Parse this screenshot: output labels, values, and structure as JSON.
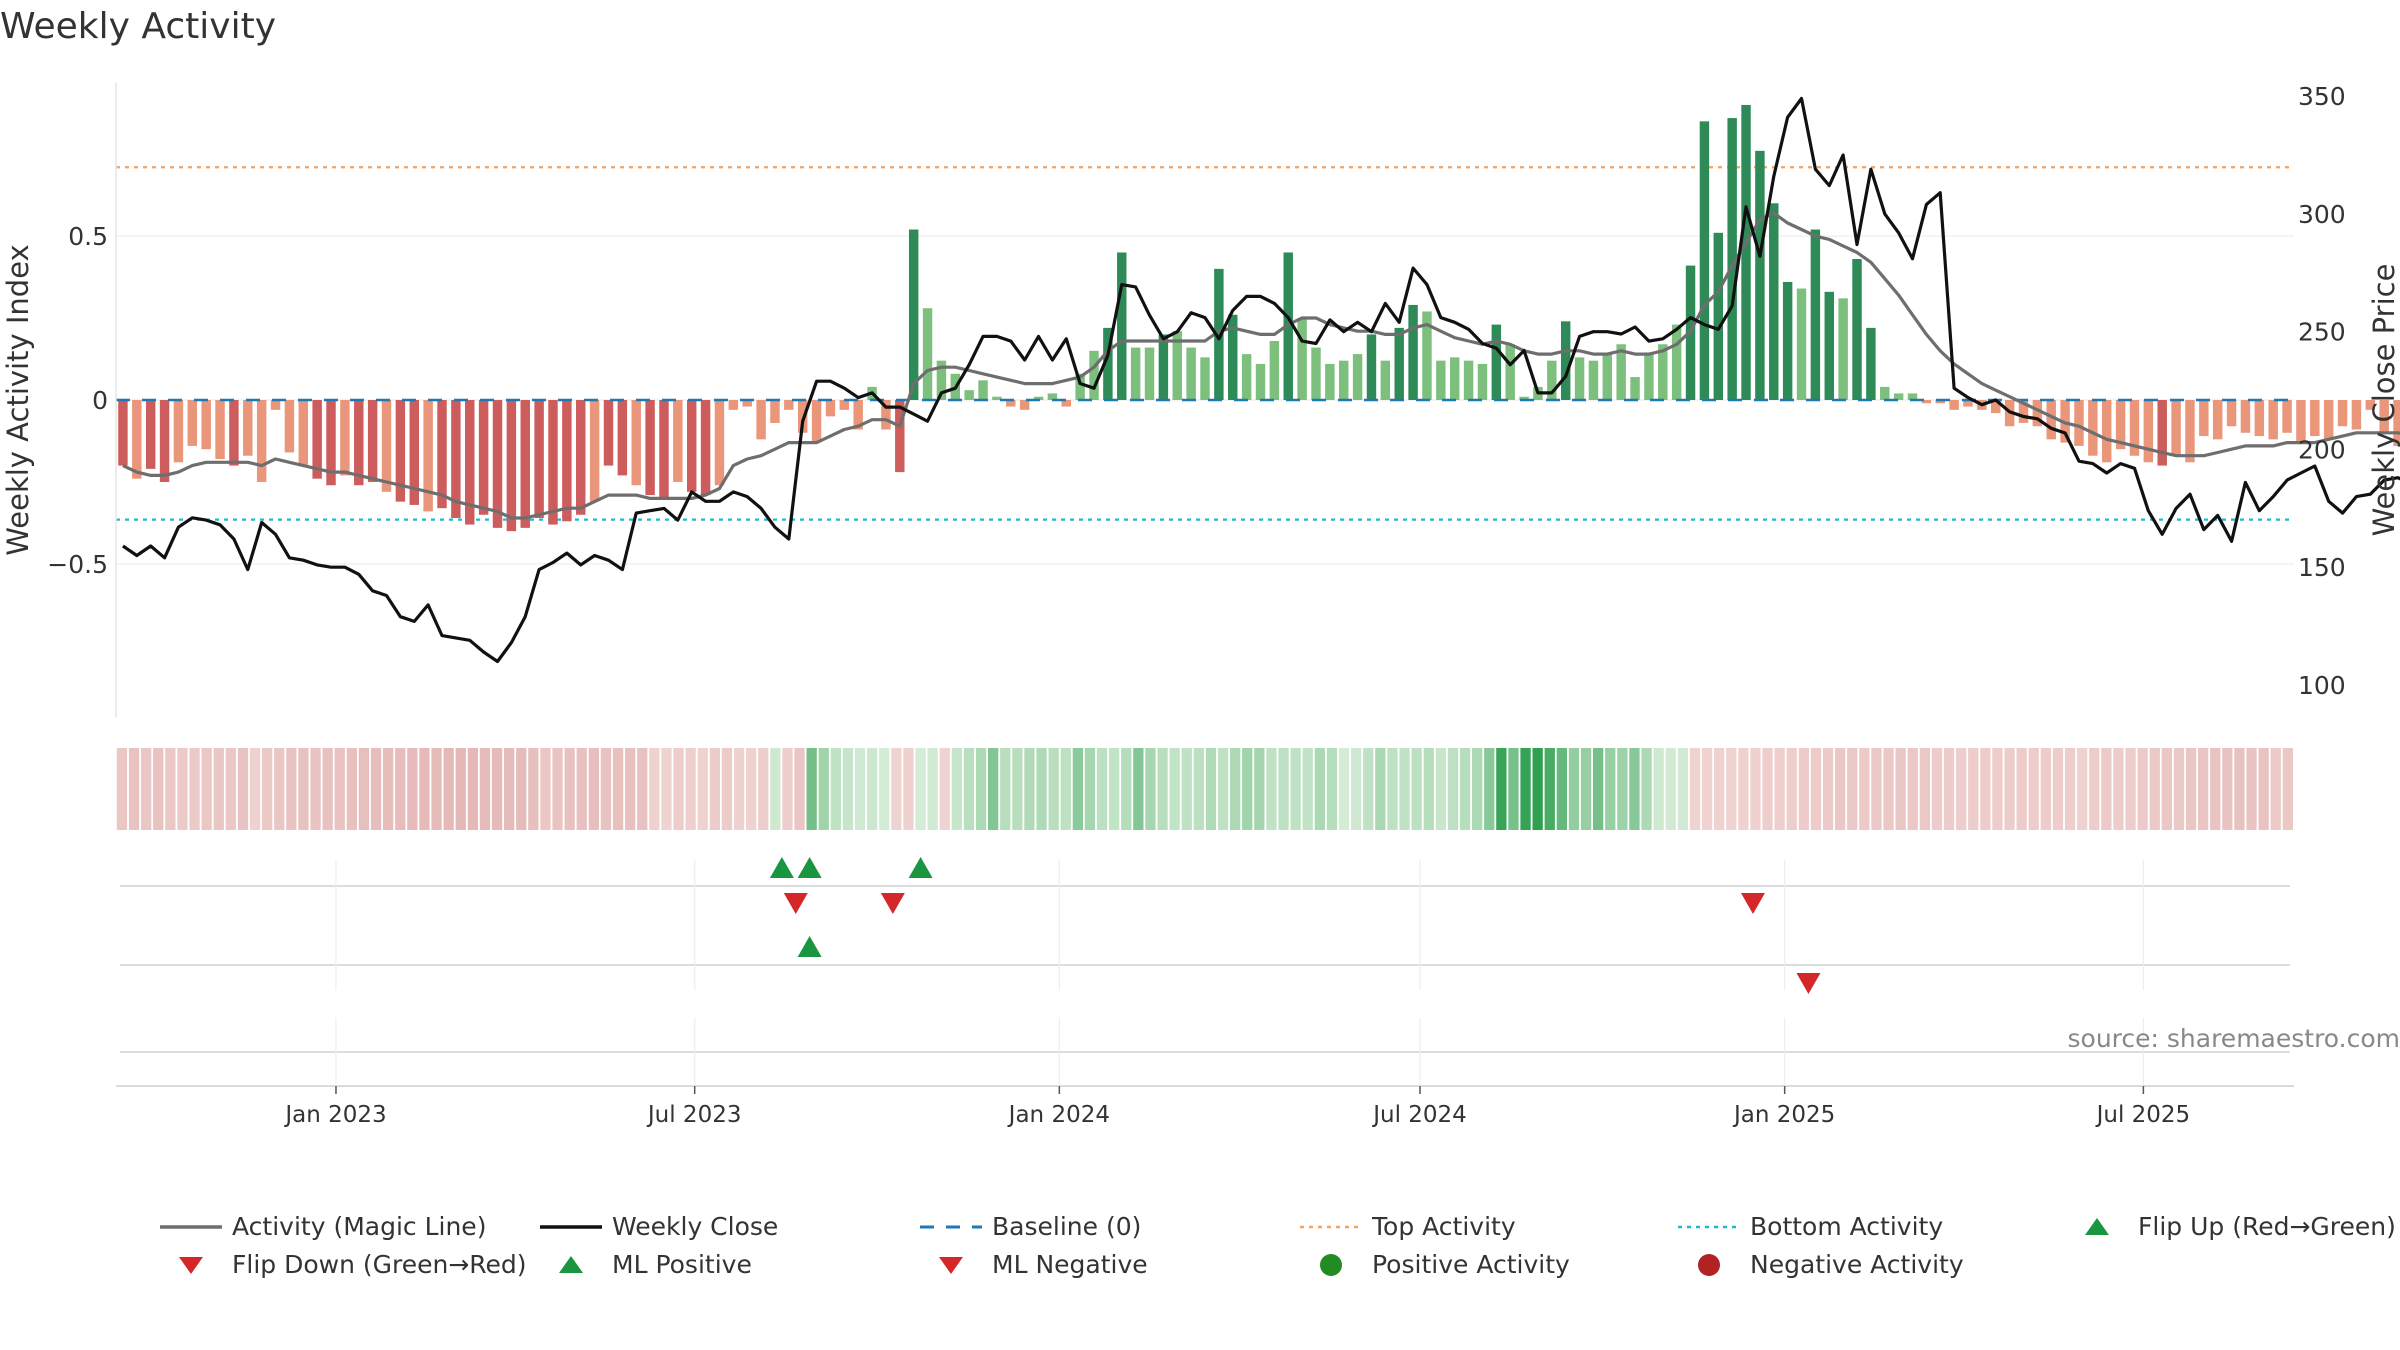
{
  "title": "Weekly Activity",
  "source": "source: sharemaestro.com",
  "colors": {
    "strong_green": "#2e8b57",
    "light_green": "#7dbf7d",
    "strong_red": "#cd5c5c",
    "light_red": "#e9967a",
    "magic_line": "#6e6e6e",
    "close_line": "#111111",
    "baseline": "#1f77b4",
    "top_line": "#f4a460",
    "bottom_line": "#17becf",
    "flip_up": "#1a9641",
    "flip_down": "#d62728"
  },
  "chart_data": {
    "type": "bar",
    "x_ticks": [
      "Jan 2023",
      "Jul 2023",
      "Jan 2024",
      "Jul 2024",
      "Jan 2025",
      "Jul 2025"
    ],
    "x_tick_dates": [
      "2023-01-01",
      "2023-07-01",
      "2024-01-01",
      "2024-07-01",
      "2025-01-01",
      "2025-07-01"
    ],
    "x_range": [
      "2022-09-12",
      "2025-09-15"
    ],
    "left_axis": {
      "label": "Weekly Activity Index",
      "ticks": [
        0.5,
        0,
        -0.5
      ],
      "tick_labels": [
        "0.5",
        "0",
        "−0.5"
      ],
      "ylim": [
        -0.97,
        0.97
      ]
    },
    "right_axis": {
      "label": "Weekly Close Price",
      "ticks": [
        100,
        150,
        200,
        250,
        300,
        350
      ],
      "tick_labels": [
        "100",
        "150",
        "200",
        "250",
        "300",
        "350"
      ],
      "ylim": [
        86,
        356
      ]
    },
    "reference_lines": {
      "baseline": 0,
      "top_activity": 0.71,
      "bottom_activity": -0.365
    },
    "weekly": {
      "start_date": "2022-09-12",
      "activity": [
        -0.2,
        -0.24,
        -0.21,
        -0.25,
        -0.19,
        -0.14,
        -0.15,
        -0.18,
        -0.2,
        -0.17,
        -0.25,
        -0.03,
        -0.16,
        -0.2,
        -0.24,
        -0.26,
        -0.23,
        -0.26,
        -0.25,
        -0.28,
        -0.31,
        -0.32,
        -0.34,
        -0.33,
        -0.36,
        -0.38,
        -0.35,
        -0.39,
        -0.4,
        -0.39,
        -0.36,
        -0.38,
        -0.37,
        -0.35,
        -0.31,
        -0.2,
        -0.23,
        -0.26,
        -0.29,
        -0.3,
        -0.25,
        -0.28,
        -0.29,
        -0.26,
        -0.03,
        -0.02,
        -0.12,
        -0.07,
        -0.03,
        -0.1,
        -0.13,
        -0.05,
        -0.03,
        -0.09,
        0.04,
        -0.09,
        -0.22,
        0.52,
        0.28,
        0.12,
        0.08,
        0.03,
        0.06,
        0.01,
        -0.02,
        -0.03,
        0.01,
        0.02,
        -0.02,
        0.08,
        0.15,
        0.22,
        0.45,
        0.16,
        0.16,
        0.2,
        0.21,
        0.16,
        0.13,
        0.4,
        0.26,
        0.14,
        0.11,
        0.18,
        0.45,
        0.25,
        0.16,
        0.11,
        0.12,
        0.14,
        0.2,
        0.12,
        0.22,
        0.29,
        0.27,
        0.12,
        0.13,
        0.12,
        0.11,
        0.23,
        0.17,
        0.01,
        0.04,
        0.12,
        0.24,
        0.13,
        0.12,
        0.14,
        0.17,
        0.07,
        0.14,
        0.17,
        0.23,
        0.41,
        0.85,
        0.51,
        0.86,
        0.9,
        0.76,
        0.6,
        0.36,
        0.34,
        0.52,
        0.33,
        0.31,
        0.43,
        0.22,
        0.04,
        0.02,
        0.02,
        -0.01,
        -0.01,
        -0.03,
        -0.02,
        -0.03,
        -0.04,
        -0.08,
        -0.07,
        -0.08,
        -0.12,
        -0.13,
        -0.14,
        -0.17,
        -0.19,
        -0.15,
        -0.17,
        -0.19,
        -0.2,
        -0.17,
        -0.19,
        -0.11,
        -0.12,
        -0.08,
        -0.1,
        -0.11,
        -0.12,
        -0.1,
        -0.13,
        -0.11,
        -0.12,
        -0.08,
        -0.09,
        -0.03,
        -0.1,
        -0.14,
        -0.1,
        -0.12,
        -0.14,
        -0.16,
        -0.19,
        -0.16,
        -0.2,
        -0.22,
        -0.24,
        -0.24,
        -0.26,
        -0.23,
        -0.25,
        -0.15,
        -0.19
      ],
      "magic_line": [
        -0.2,
        -0.22,
        -0.23,
        -0.23,
        -0.22,
        -0.2,
        -0.19,
        -0.19,
        -0.19,
        -0.19,
        -0.2,
        -0.18,
        -0.19,
        -0.2,
        -0.21,
        -0.22,
        -0.22,
        -0.23,
        -0.24,
        -0.25,
        -0.26,
        -0.27,
        -0.28,
        -0.29,
        -0.31,
        -0.32,
        -0.33,
        -0.34,
        -0.36,
        -0.36,
        -0.35,
        -0.34,
        -0.33,
        -0.33,
        -0.31,
        -0.29,
        -0.29,
        -0.29,
        -0.3,
        -0.3,
        -0.3,
        -0.3,
        -0.29,
        -0.27,
        -0.2,
        -0.18,
        -0.17,
        -0.15,
        -0.13,
        -0.13,
        -0.13,
        -0.11,
        -0.09,
        -0.08,
        -0.06,
        -0.06,
        -0.08,
        0.05,
        0.09,
        0.1,
        0.1,
        0.09,
        0.08,
        0.07,
        0.06,
        0.05,
        0.05,
        0.05,
        0.06,
        0.07,
        0.1,
        0.15,
        0.18,
        0.18,
        0.18,
        0.18,
        0.18,
        0.18,
        0.18,
        0.21,
        0.22,
        0.21,
        0.2,
        0.2,
        0.23,
        0.25,
        0.25,
        0.23,
        0.22,
        0.21,
        0.21,
        0.2,
        0.2,
        0.22,
        0.23,
        0.21,
        0.19,
        0.18,
        0.17,
        0.18,
        0.17,
        0.15,
        0.14,
        0.14,
        0.15,
        0.15,
        0.14,
        0.14,
        0.15,
        0.14,
        0.14,
        0.15,
        0.17,
        0.21,
        0.29,
        0.33,
        0.41,
        0.48,
        0.55,
        0.57,
        0.54,
        0.52,
        0.5,
        0.49,
        0.47,
        0.45,
        0.42,
        0.37,
        0.32,
        0.26,
        0.2,
        0.15,
        0.11,
        0.08,
        0.05,
        0.03,
        0.01,
        -0.01,
        -0.03,
        -0.05,
        -0.07,
        -0.08,
        -0.1,
        -0.12,
        -0.13,
        -0.14,
        -0.15,
        -0.16,
        -0.17,
        -0.17,
        -0.17,
        -0.16,
        -0.15,
        -0.14,
        -0.14,
        -0.14,
        -0.13,
        -0.13,
        -0.13,
        -0.12,
        -0.11,
        -0.1,
        -0.1,
        -0.1,
        -0.1,
        -0.11,
        -0.11,
        -0.12,
        -0.13,
        -0.14,
        -0.15,
        -0.16,
        -0.18,
        -0.19,
        -0.2,
        -0.21,
        -0.21,
        -0.2,
        -0.2
      ],
      "close": [
        159,
        155,
        159,
        154,
        167,
        171,
        170,
        168,
        162,
        149,
        169,
        164,
        154,
        153,
        151,
        150,
        150,
        147,
        140,
        138,
        129,
        127,
        134,
        121,
        120,
        119,
        114,
        110,
        118,
        129,
        149,
        152,
        156,
        151,
        155,
        153,
        149,
        173,
        174,
        175,
        170,
        182,
        178,
        178,
        182,
        180,
        175,
        167,
        162,
        212,
        229,
        229,
        226,
        222,
        224,
        218,
        218,
        215,
        212,
        224,
        226,
        236,
        248,
        248,
        246,
        238,
        248,
        238,
        247,
        228,
        226,
        240,
        270,
        269,
        257,
        247,
        250,
        258,
        256,
        247,
        259,
        265,
        265,
        262,
        256,
        246,
        245,
        255,
        250,
        254,
        250,
        262,
        254,
        277,
        270,
        256,
        254,
        251,
        245,
        243,
        236,
        242,
        224,
        224,
        231,
        248,
        250,
        250,
        249,
        252,
        246,
        247,
        251,
        256,
        253,
        251,
        261,
        303,
        282,
        316,
        341,
        349,
        319,
        312,
        325,
        287,
        319,
        300,
        292,
        281,
        304,
        309,
        226,
        222,
        219,
        221,
        216,
        214,
        213,
        209,
        207,
        195,
        194,
        190,
        194,
        192,
        174,
        164,
        175,
        181,
        166,
        172,
        161,
        186,
        174,
        180,
        187,
        190,
        193,
        178,
        173,
        180,
        181,
        187,
        188,
        185,
        197,
        186,
        182,
        181,
        180,
        178,
        180,
        174,
        172,
        169,
        158,
        156,
        159,
        153,
        150,
        154,
        173,
        177
      ]
    },
    "heat_strip": {
      "row": "weekly activity heat map",
      "scale": "red = negative, green = positive, darker = stronger"
    },
    "marker_rows": {
      "row1_flip_up_dates": [
        "2023-08-14",
        "2023-08-28",
        "2023-10-23"
      ],
      "row1_flip_down_dates": [
        "2023-08-21",
        "2023-10-09",
        "2024-12-16"
      ],
      "row2_ml_positive_dates": [
        "2023-08-28"
      ],
      "row2_ml_negative_dates": [
        "2025-01-13"
      ]
    },
    "legend": [
      {
        "label": "Activity (Magic Line)",
        "symbol": "line-gray"
      },
      {
        "label": "Weekly Close",
        "symbol": "line-black"
      },
      {
        "label": "Baseline (0)",
        "symbol": "dash-blue"
      },
      {
        "label": "Top Activity",
        "symbol": "dot-orange"
      },
      {
        "label": "Bottom Activity",
        "symbol": "dot-cyan"
      },
      {
        "label": "Flip Up (Red→Green)",
        "symbol": "tri-up-green"
      },
      {
        "label": "Flip Down (Green→Red)",
        "symbol": "tri-down-red"
      },
      {
        "label": "ML Positive",
        "symbol": "tri-up-green"
      },
      {
        "label": "ML Negative",
        "symbol": "tri-down-red"
      },
      {
        "label": "Positive Activity",
        "symbol": "circle-green"
      },
      {
        "label": "Negative Activity",
        "symbol": "circle-red"
      }
    ]
  }
}
